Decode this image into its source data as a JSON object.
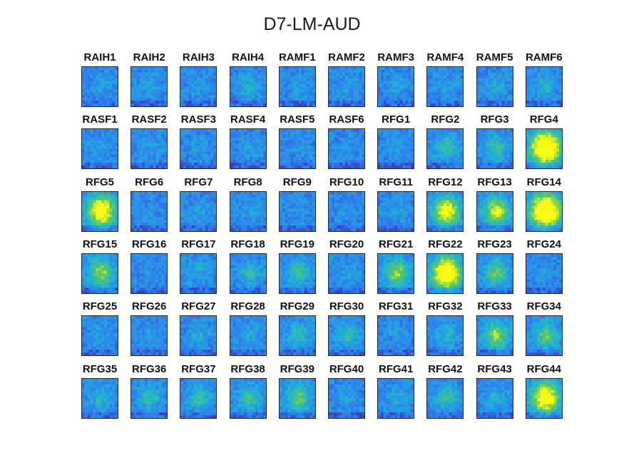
{
  "figure": {
    "title": "D7-LM-AUD"
  },
  "chart_data": {
    "type": "heatmap",
    "title": "D7-LM-AUD",
    "grid_rows": 6,
    "grid_cols": 10,
    "panels": [
      {
        "label": "RAIH1",
        "activity": 0.1
      },
      {
        "label": "RAIH2",
        "activity": 0.1
      },
      {
        "label": "RAIH3",
        "activity": 0.08
      },
      {
        "label": "RAIH4",
        "activity": 0.2
      },
      {
        "label": "RAMF1",
        "activity": 0.08
      },
      {
        "label": "RAMF2",
        "activity": 0.08
      },
      {
        "label": "RAMF3",
        "activity": 0.1
      },
      {
        "label": "RAMF4",
        "activity": 0.1
      },
      {
        "label": "RAMF5",
        "activity": 0.15
      },
      {
        "label": "RAMF6",
        "activity": 0.2
      },
      {
        "label": "RASF1",
        "activity": 0.1
      },
      {
        "label": "RASF2",
        "activity": 0.1
      },
      {
        "label": "RASF3",
        "activity": 0.08
      },
      {
        "label": "RASF4",
        "activity": 0.08
      },
      {
        "label": "RASF5",
        "activity": 0.05
      },
      {
        "label": "RASF6",
        "activity": 0.05
      },
      {
        "label": "RFG1",
        "activity": 0.05
      },
      {
        "label": "RFG2",
        "activity": 0.3
      },
      {
        "label": "RFG3",
        "activity": 0.3
      },
      {
        "label": "RFG4",
        "activity": 1.0
      },
      {
        "label": "RFG5",
        "activity": 0.8
      },
      {
        "label": "RFG6",
        "activity": 0.05
      },
      {
        "label": "RFG7",
        "activity": 0.08
      },
      {
        "label": "RFG8",
        "activity": 0.08
      },
      {
        "label": "RFG9",
        "activity": 0.05
      },
      {
        "label": "RFG10",
        "activity": 0.05
      },
      {
        "label": "RFG11",
        "activity": 0.1
      },
      {
        "label": "RFG12",
        "activity": 0.7
      },
      {
        "label": "RFG13",
        "activity": 0.6
      },
      {
        "label": "RFG14",
        "activity": 1.0
      },
      {
        "label": "RFG15",
        "activity": 0.5
      },
      {
        "label": "RFG16",
        "activity": 0.05
      },
      {
        "label": "RFG17",
        "activity": 0.15
      },
      {
        "label": "RFG18",
        "activity": 0.25
      },
      {
        "label": "RFG19",
        "activity": 0.3
      },
      {
        "label": "RFG20",
        "activity": 0.1
      },
      {
        "label": "RFG21",
        "activity": 0.5
      },
      {
        "label": "RFG22",
        "activity": 0.9
      },
      {
        "label": "RFG23",
        "activity": 0.4
      },
      {
        "label": "RFG24",
        "activity": 0.05
      },
      {
        "label": "RFG25",
        "activity": 0.08
      },
      {
        "label": "RFG26",
        "activity": 0.08
      },
      {
        "label": "RFG27",
        "activity": 0.15
      },
      {
        "label": "RFG28",
        "activity": 0.15
      },
      {
        "label": "RFG29",
        "activity": 0.25
      },
      {
        "label": "RFG30",
        "activity": 0.25
      },
      {
        "label": "RFG31",
        "activity": 0.08
      },
      {
        "label": "RFG32",
        "activity": 0.2
      },
      {
        "label": "RFG33",
        "activity": 0.5
      },
      {
        "label": "RFG34",
        "activity": 0.4
      },
      {
        "label": "RFG35",
        "activity": 0.2
      },
      {
        "label": "RFG36",
        "activity": 0.25
      },
      {
        "label": "RFG37",
        "activity": 0.3
      },
      {
        "label": "RFG38",
        "activity": 0.3
      },
      {
        "label": "RFG39",
        "activity": 0.4
      },
      {
        "label": "RFG40",
        "activity": 0.1
      },
      {
        "label": "RFG41",
        "activity": 0.15
      },
      {
        "label": "RFG42",
        "activity": 0.3
      },
      {
        "label": "RFG43",
        "activity": 0.2
      },
      {
        "label": "RFG44",
        "activity": 0.8
      }
    ],
    "colormap": [
      "#3e26a8",
      "#2f7ff0",
      "#1fb5d5",
      "#59c864",
      "#f9fb15"
    ]
  }
}
